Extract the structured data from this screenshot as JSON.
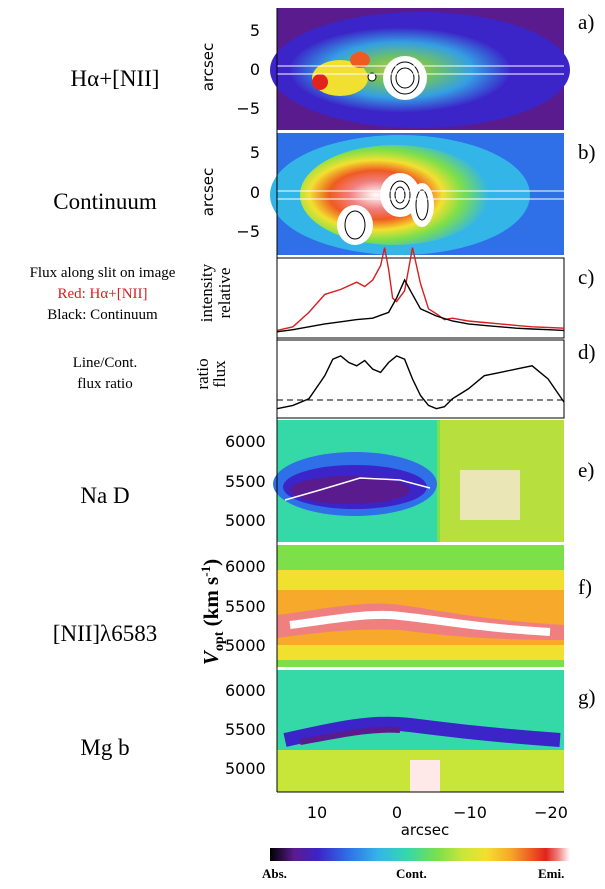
{
  "left_labels": {
    "a": "Hα+[NII]",
    "b": "Continuum",
    "c_line1": "Flux along slit on image",
    "c_line2": "Red: Hα+[NII]",
    "c_line3": "Black: Continuum",
    "d_line1": "Line/Cont.",
    "d_line2": "flux ratio",
    "e": "Na D",
    "f": "[NII]λ6583",
    "g": "Mg b"
  },
  "panel_tags": [
    "a)",
    "b)",
    "c)",
    "d)",
    "e)",
    "f)",
    "g)"
  ],
  "axis": {
    "arcsec_y": "arcsec",
    "rel_intensity_1": "relative",
    "rel_intensity_2": "intensity",
    "flux_ratio_1": "flux",
    "flux_ratio_2": "ratio",
    "vopt": "V",
    "vopt_sub": "opt",
    "vopt_units": " (km s",
    "vopt_exp": "-1",
    "vopt_close": ")",
    "x_label": "arcsec"
  },
  "ticks": {
    "image_y": [
      "5",
      "0",
      "−5"
    ],
    "vel_y": [
      "6000",
      "5500",
      "5000"
    ],
    "x": [
      "10",
      "0",
      "−10",
      "−20"
    ]
  },
  "colorbar": {
    "left": "Abs.",
    "mid": "Cont.",
    "right": "Emi.",
    "colors": [
      "#000000",
      "#5a1b8f",
      "#3b24c8",
      "#2f6fe8",
      "#33b5e8",
      "#35d9a8",
      "#7ddf4a",
      "#c8e63a",
      "#f2e030",
      "#f6a92a",
      "#ef5a22",
      "#e0231e",
      "#f08080",
      "#ffe8e8"
    ]
  },
  "chart_data": [
    {
      "type": "line",
      "panel": "c",
      "xlabel": "arcsec",
      "ylabel": "relative intensity",
      "xlim": [
        16,
        -20
      ],
      "series": [
        {
          "color": "#d81e1e",
          "x": [
            16,
            14,
            12,
            10,
            8,
            6,
            5,
            4,
            3,
            2.5,
            2,
            1.5,
            1,
            0,
            -1,
            -2,
            -3,
            -4,
            -5,
            -6,
            -8,
            -10,
            -12,
            -14,
            -16,
            -18,
            -20
          ],
          "y": [
            0.05,
            0.1,
            0.3,
            0.55,
            0.62,
            0.72,
            0.66,
            0.75,
            0.95,
            1.2,
            0.9,
            0.5,
            0.45,
            0.6,
            1.2,
            0.7,
            0.35,
            0.28,
            0.2,
            0.22,
            0.18,
            0.16,
            0.14,
            0.12,
            0.1,
            0.09,
            0.08
          ]
        },
        {
          "color": "#000000",
          "x": [
            16,
            14,
            12,
            10,
            8,
            6,
            4,
            2,
            1,
            0,
            -1,
            -2,
            -3,
            -4,
            -6,
            -8,
            -10,
            -12,
            -14,
            -16,
            -18,
            -20
          ],
          "y": [
            0.03,
            0.06,
            0.1,
            0.14,
            0.17,
            0.2,
            0.22,
            0.3,
            0.5,
            0.75,
            0.55,
            0.35,
            0.3,
            0.25,
            0.18,
            0.14,
            0.12,
            0.1,
            0.08,
            0.07,
            0.06,
            0.05
          ]
        }
      ]
    },
    {
      "type": "line",
      "panel": "d",
      "xlabel": "arcsec",
      "ylabel": "flux ratio",
      "xlim": [
        16,
        -20
      ],
      "series": [
        {
          "color": "#000000",
          "x": [
            16,
            14,
            12,
            10,
            9,
            8,
            7,
            6,
            5,
            4,
            3,
            2,
            1,
            0,
            -1,
            -2,
            -3,
            -4,
            -5,
            -6,
            -8,
            -10,
            -12,
            -14,
            -16,
            -18,
            -20
          ],
          "y": [
            0.05,
            0.1,
            0.2,
            0.55,
            0.8,
            0.85,
            0.75,
            0.7,
            0.78,
            0.65,
            0.6,
            0.75,
            0.85,
            0.8,
            0.5,
            0.25,
            0.1,
            0.05,
            0.08,
            0.2,
            0.35,
            0.55,
            0.6,
            0.65,
            0.7,
            0.5,
            0.15
          ]
        }
      ],
      "reference_line": "dashed"
    }
  ]
}
